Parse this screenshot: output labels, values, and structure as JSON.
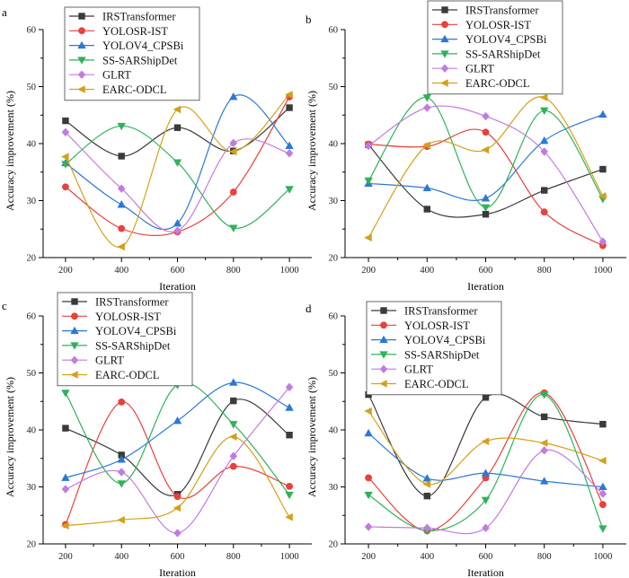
{
  "colors": {
    "IRSTransformer": "#3a3a3a",
    "YOLOSR-IST": "#e8413b",
    "YOLOV4_CPSBi": "#2b78d6",
    "SS-SARShipDet": "#2fb25a",
    "GLRT": "#c27be0",
    "EARC-ODCL": "#d4a01c"
  },
  "chart_data": [
    {
      "panel": "a",
      "type": "line",
      "xlabel": "Iteration",
      "ylabel": "Accuracy improvement (%)",
      "x": [
        200,
        400,
        600,
        800,
        1000
      ],
      "ylim": [
        20,
        60
      ],
      "yticks": [
        20,
        30,
        40,
        50,
        60
      ],
      "series": [
        {
          "name": "IRSTransformer",
          "marker": "square",
          "values": [
            44.0,
            37.8,
            42.8,
            38.7,
            46.3
          ]
        },
        {
          "name": "YOLOSR-IST",
          "marker": "circle",
          "values": [
            32.4,
            25.1,
            24.5,
            31.5,
            48.2
          ]
        },
        {
          "name": "YOLOV4_CPSBi",
          "marker": "triangle-up",
          "values": [
            36.6,
            29.3,
            26.0,
            48.2,
            39.6
          ]
        },
        {
          "name": "SS-SARShipDet",
          "marker": "triangle-down",
          "values": [
            36.4,
            43.1,
            36.7,
            25.2,
            32.0
          ]
        },
        {
          "name": "GLRT",
          "marker": "diamond",
          "values": [
            42.0,
            32.1,
            24.7,
            40.1,
            38.3
          ]
        },
        {
          "name": "EARC-ODCL",
          "marker": "triangle-left",
          "values": [
            37.7,
            21.9,
            46.0,
            38.6,
            48.6
          ]
        }
      ]
    },
    {
      "panel": "b",
      "type": "line",
      "xlabel": "Iteration",
      "ylabel": "Accuracy improvement (%)",
      "x": [
        200,
        400,
        600,
        800,
        1000
      ],
      "ylim": [
        20,
        60
      ],
      "yticks": [
        20,
        30,
        40,
        50,
        60
      ],
      "series": [
        {
          "name": "IRSTransformer",
          "marker": "square",
          "values": [
            39.8,
            28.5,
            27.6,
            31.8,
            35.5
          ]
        },
        {
          "name": "YOLOSR-IST",
          "marker": "circle",
          "values": [
            39.9,
            39.5,
            42.0,
            28.0,
            22.1
          ]
        },
        {
          "name": "YOLOV4_CPSBi",
          "marker": "triangle-up",
          "values": [
            33.0,
            32.2,
            30.4,
            40.5,
            45.1
          ]
        },
        {
          "name": "SS-SARShipDet",
          "marker": "triangle-down",
          "values": [
            33.5,
            48.1,
            28.8,
            45.8,
            30.3
          ]
        },
        {
          "name": "GLRT",
          "marker": "diamond",
          "values": [
            39.6,
            46.3,
            44.8,
            38.6,
            22.8
          ]
        },
        {
          "name": "EARC-ODCL",
          "marker": "triangle-left",
          "values": [
            23.5,
            39.7,
            38.9,
            48.1,
            30.8
          ]
        }
      ]
    },
    {
      "panel": "c",
      "type": "line",
      "xlabel": "Iteration",
      "ylabel": "Accuracy improvement (%)",
      "x": [
        200,
        400,
        600,
        800,
        1000
      ],
      "ylim": [
        20,
        60
      ],
      "yticks": [
        20,
        30,
        40,
        50,
        60
      ],
      "series": [
        {
          "name": "IRSTransformer",
          "marker": "square",
          "values": [
            40.3,
            35.6,
            28.7,
            45.1,
            39.1
          ]
        },
        {
          "name": "YOLOSR-IST",
          "marker": "circle",
          "values": [
            23.4,
            44.9,
            28.3,
            33.6,
            30.1
          ]
        },
        {
          "name": "YOLOV4_CPSBi",
          "marker": "triangle-up",
          "values": [
            31.6,
            34.8,
            41.6,
            48.3,
            43.9
          ]
        },
        {
          "name": "SS-SARShipDet",
          "marker": "triangle-down",
          "values": [
            46.5,
            30.6,
            47.9,
            41.0,
            28.6
          ]
        },
        {
          "name": "GLRT",
          "marker": "diamond",
          "values": [
            29.6,
            32.6,
            21.9,
            35.4,
            47.5
          ]
        },
        {
          "name": "EARC-ODCL",
          "marker": "triangle-left",
          "values": [
            23.2,
            24.2,
            26.3,
            38.8,
            24.7
          ]
        }
      ]
    },
    {
      "panel": "d",
      "type": "line",
      "xlabel": "Iteration",
      "ylabel": "Accuracy improvement (%)",
      "x": [
        200,
        400,
        600,
        800,
        1000
      ],
      "ylim": [
        20,
        60
      ],
      "yticks": [
        20,
        30,
        40,
        50,
        60
      ],
      "series": [
        {
          "name": "IRSTransformer",
          "marker": "square",
          "values": [
            46.2,
            28.4,
            45.7,
            42.3,
            41.0
          ]
        },
        {
          "name": "YOLOSR-IST",
          "marker": "circle",
          "values": [
            31.6,
            22.3,
            31.6,
            46.5,
            26.9
          ]
        },
        {
          "name": "YOLOV4_CPSBi",
          "marker": "triangle-up",
          "values": [
            39.4,
            31.5,
            32.4,
            31.0,
            30.0
          ]
        },
        {
          "name": "SS-SARShipDet",
          "marker": "triangle-down",
          "values": [
            28.6,
            22.3,
            27.7,
            46.2,
            22.7
          ]
        },
        {
          "name": "GLRT",
          "marker": "diamond",
          "values": [
            23.0,
            22.8,
            22.8,
            36.4,
            28.8
          ]
        },
        {
          "name": "EARC-ODCL",
          "marker": "triangle-left",
          "values": [
            43.3,
            30.5,
            38.0,
            37.7,
            34.6
          ]
        }
      ]
    }
  ]
}
